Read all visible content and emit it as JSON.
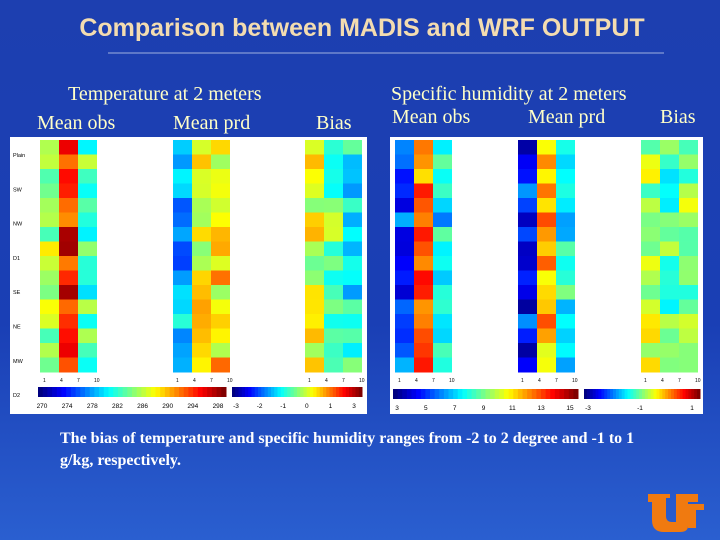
{
  "title": "Comparison between MADIS and WRF OUTPUT",
  "panels": [
    {
      "title": "Temperature at 2 meters",
      "columns": [
        "Mean obs",
        "Mean prd",
        "Bias"
      ],
      "row_labels": [
        "Plain",
        "SW",
        "NW",
        "D1",
        "SE",
        "NE",
        "MW",
        "D2"
      ],
      "x_ticks": [
        "1",
        "4",
        "7",
        "10"
      ],
      "colorbars": [
        [
          "270",
          "274",
          "278",
          "282",
          "286",
          "290",
          "294",
          "298"
        ],
        [
          "-3",
          "-2",
          "-1",
          "0",
          "1",
          "3"
        ]
      ]
    },
    {
      "title": "Specific humidity at 2 meters",
      "columns": [
        "Mean obs",
        "Mean prd",
        "Bias"
      ],
      "x_ticks": [
        "1",
        "4",
        "7",
        "10"
      ],
      "colorbars": [
        [
          "3",
          "5",
          "7",
          "9",
          "11",
          "13",
          "15"
        ],
        [
          "-3",
          "-1",
          "1"
        ]
      ]
    }
  ],
  "caption": "The bias of temperature and specific humidity ranges from -2 to 2 degree and -1 to 1 g/kg, respectively."
}
